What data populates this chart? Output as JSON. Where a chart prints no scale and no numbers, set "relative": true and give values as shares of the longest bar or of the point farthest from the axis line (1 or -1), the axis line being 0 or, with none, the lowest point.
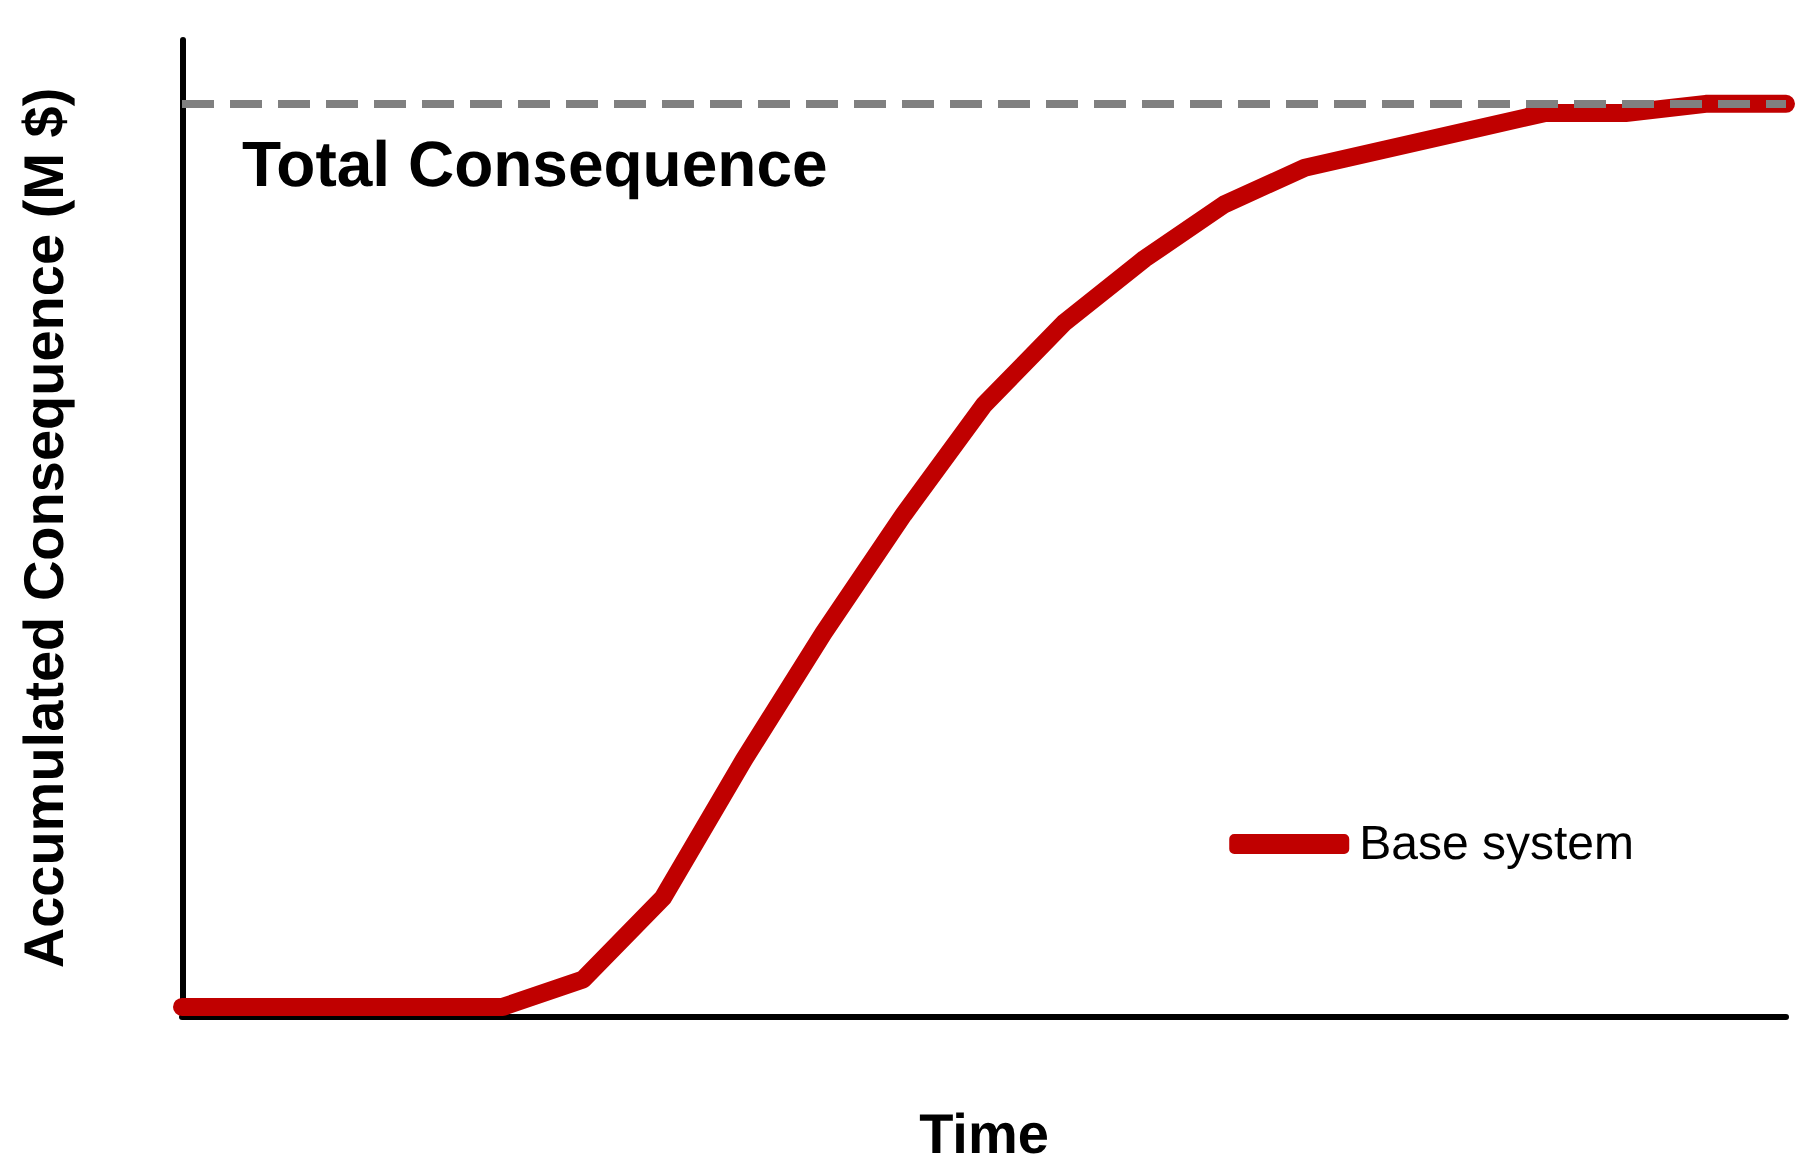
{
  "chart_data": {
    "type": "line",
    "relative": true,
    "xlabel": "Time",
    "ylabel": "Accumulated Consequence (M $)",
    "categories": [
      null,
      null,
      null,
      null,
      null,
      null,
      null,
      null,
      null,
      null,
      null,
      null,
      null,
      null,
      null,
      null,
      null,
      null,
      null,
      null,
      null
    ],
    "series": [
      {
        "name": "Base system",
        "color": "#c00000",
        "values": [
          0.01,
          0.01,
          0.01,
          0.01,
          0.01,
          0.04,
          0.13,
          0.28,
          0.42,
          0.55,
          0.67,
          0.76,
          0.83,
          0.89,
          0.93,
          0.95,
          0.97,
          0.99,
          0.99,
          1.0,
          1.0
        ]
      }
    ],
    "ref_lines": [
      {
        "axis": "y",
        "value": 1,
        "label": "Total Consequence",
        "color": "#808080",
        "line_style": "dashed"
      }
    ],
    "legend": "bottom right",
    "grid": false,
    "line_style": "solid"
  }
}
